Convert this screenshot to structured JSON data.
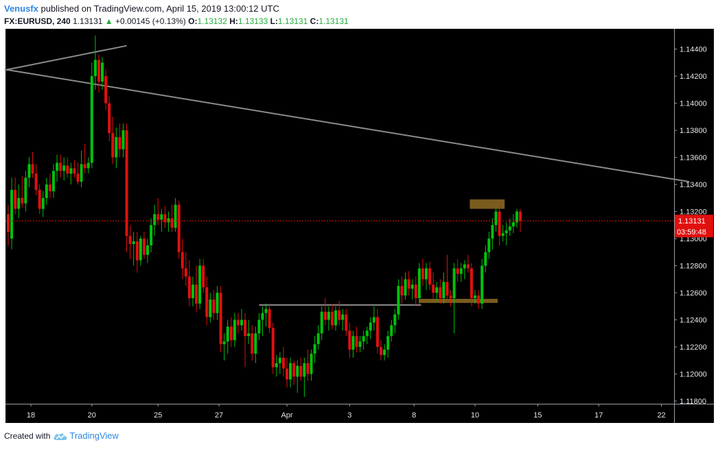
{
  "header": {
    "author": "Venusfx",
    "published_text": "published on TradingView.com, April 15, 2019 13:00:12 UTC",
    "symbol": "FX:EURUSD, 240",
    "last": "1.13131",
    "change_arrow": "▲",
    "change": "+0.00145 (+0.13%)",
    "open_label": "O:",
    "open_value": "1.13132",
    "high_label": "H:",
    "high_value": "1.13133",
    "low_label": "L:",
    "low_value": "1.13131",
    "close_label": "C:",
    "close_value": "1.13131"
  },
  "price_tag": {
    "value": "1.13131",
    "countdown": "03:59:48"
  },
  "footer": {
    "created_with": "Created with",
    "brand": "TradingView",
    "logo_icon": "tradingview-cloud-icon"
  },
  "chart_data": {
    "type": "candlestick",
    "title": "",
    "xlabel": "",
    "ylabel": "",
    "ylim": [
      1.1178,
      1.1455
    ],
    "grid": false,
    "background": "#000000",
    "up_color": "#00c20c",
    "down_color": "#e0100e",
    "price_line": {
      "value": 1.13131,
      "color": "#e0100e"
    },
    "y_ticks": [
      "1.14400",
      "1.14200",
      "1.14000",
      "1.13800",
      "1.13600",
      "1.13400",
      "1.13200",
      "1.13000",
      "1.12800",
      "1.12600",
      "1.12400",
      "1.12200",
      "1.12000",
      "1.11800"
    ],
    "x_ticks": [
      {
        "label": "18",
        "index": 6.5
      },
      {
        "label": "20",
        "index": 24
      },
      {
        "label": "25",
        "index": 43
      },
      {
        "label": "27",
        "index": 60.5
      },
      {
        "label": "Apr",
        "index": 80
      },
      {
        "label": "3",
        "index": 98
      },
      {
        "label": "8",
        "index": 116.5
      },
      {
        "label": "10",
        "index": 134
      },
      {
        "label": "15",
        "index": 152
      },
      {
        "label": "17",
        "index": 169.5
      },
      {
        "label": "22",
        "index": 187.5
      }
    ],
    "candles": [
      {
        "o": 1.1318,
        "h": 1.1325,
        "l": 1.1295,
        "c": 1.1305
      },
      {
        "o": 1.13,
        "h": 1.1345,
        "l": 1.1292,
        "c": 1.1336
      },
      {
        "o": 1.1336,
        "h": 1.1345,
        "l": 1.1318,
        "c": 1.1322
      },
      {
        "o": 1.1322,
        "h": 1.134,
        "l": 1.1315,
        "c": 1.133
      },
      {
        "o": 1.133,
        "h": 1.1346,
        "l": 1.1323,
        "c": 1.1326
      },
      {
        "o": 1.1326,
        "h": 1.135,
        "l": 1.132,
        "c": 1.1345
      },
      {
        "o": 1.1345,
        "h": 1.136,
        "l": 1.1338,
        "c": 1.1355
      },
      {
        "o": 1.1355,
        "h": 1.1364,
        "l": 1.1345,
        "c": 1.1348
      },
      {
        "o": 1.1348,
        "h": 1.1355,
        "l": 1.1332,
        "c": 1.1336
      },
      {
        "o": 1.1336,
        "h": 1.134,
        "l": 1.1318,
        "c": 1.1322
      },
      {
        "o": 1.1322,
        "h": 1.1335,
        "l": 1.1316,
        "c": 1.133
      },
      {
        "o": 1.133,
        "h": 1.1345,
        "l": 1.1325,
        "c": 1.134
      },
      {
        "o": 1.134,
        "h": 1.1348,
        "l": 1.133,
        "c": 1.1335
      },
      {
        "o": 1.1335,
        "h": 1.1355,
        "l": 1.133,
        "c": 1.135
      },
      {
        "o": 1.135,
        "h": 1.1362,
        "l": 1.1342,
        "c": 1.1356
      },
      {
        "o": 1.1356,
        "h": 1.1362,
        "l": 1.1345,
        "c": 1.135
      },
      {
        "o": 1.135,
        "h": 1.136,
        "l": 1.1343,
        "c": 1.1354
      },
      {
        "o": 1.1354,
        "h": 1.136,
        "l": 1.1345,
        "c": 1.1348
      },
      {
        "o": 1.1348,
        "h": 1.1356,
        "l": 1.134,
        "c": 1.1352
      },
      {
        "o": 1.1352,
        "h": 1.1358,
        "l": 1.1345,
        "c": 1.1348
      },
      {
        "o": 1.1348,
        "h": 1.1356,
        "l": 1.134,
        "c": 1.1342
      },
      {
        "o": 1.1342,
        "h": 1.1365,
        "l": 1.1338,
        "c": 1.1355
      },
      {
        "o": 1.1355,
        "h": 1.137,
        "l": 1.1348,
        "c": 1.1352
      },
      {
        "o": 1.1352,
        "h": 1.136,
        "l": 1.1348,
        "c": 1.1356
      },
      {
        "o": 1.1356,
        "h": 1.143,
        "l": 1.1352,
        "c": 1.142
      },
      {
        "o": 1.142,
        "h": 1.145,
        "l": 1.141,
        "c": 1.1432
      },
      {
        "o": 1.1432,
        "h": 1.1436,
        "l": 1.1408,
        "c": 1.1416
      },
      {
        "o": 1.1416,
        "h": 1.1434,
        "l": 1.141,
        "c": 1.143
      },
      {
        "o": 1.142,
        "h": 1.1425,
        "l": 1.1395,
        "c": 1.14
      },
      {
        "o": 1.14,
        "h": 1.1405,
        "l": 1.1372,
        "c": 1.1378
      },
      {
        "o": 1.1378,
        "h": 1.139,
        "l": 1.1355,
        "c": 1.136
      },
      {
        "o": 1.136,
        "h": 1.1382,
        "l": 1.1352,
        "c": 1.1375
      },
      {
        "o": 1.1375,
        "h": 1.1385,
        "l": 1.136,
        "c": 1.1366
      },
      {
        "o": 1.1366,
        "h": 1.1385,
        "l": 1.136,
        "c": 1.138
      },
      {
        "o": 1.138,
        "h": 1.1385,
        "l": 1.129,
        "c": 1.1302
      },
      {
        "o": 1.1302,
        "h": 1.131,
        "l": 1.1285,
        "c": 1.1296
      },
      {
        "o": 1.1296,
        "h": 1.1305,
        "l": 1.128,
        "c": 1.1298
      },
      {
        "o": 1.1298,
        "h": 1.1305,
        "l": 1.1275,
        "c": 1.1284
      },
      {
        "o": 1.1284,
        "h": 1.1302,
        "l": 1.128,
        "c": 1.13
      },
      {
        "o": 1.13,
        "h": 1.1305,
        "l": 1.1285,
        "c": 1.1288
      },
      {
        "o": 1.1288,
        "h": 1.13,
        "l": 1.1282,
        "c": 1.1295
      },
      {
        "o": 1.1295,
        "h": 1.1315,
        "l": 1.129,
        "c": 1.131
      },
      {
        "o": 1.131,
        "h": 1.1325,
        "l": 1.1302,
        "c": 1.1318
      },
      {
        "o": 1.1318,
        "h": 1.133,
        "l": 1.131,
        "c": 1.1314
      },
      {
        "o": 1.1314,
        "h": 1.1322,
        "l": 1.1305,
        "c": 1.1318
      },
      {
        "o": 1.1318,
        "h": 1.1324,
        "l": 1.1308,
        "c": 1.1312
      },
      {
        "o": 1.1312,
        "h": 1.132,
        "l": 1.1305,
        "c": 1.1315
      },
      {
        "o": 1.1315,
        "h": 1.1325,
        "l": 1.1305,
        "c": 1.1308
      },
      {
        "o": 1.1308,
        "h": 1.133,
        "l": 1.1305,
        "c": 1.1325
      },
      {
        "o": 1.1325,
        "h": 1.1328,
        "l": 1.1285,
        "c": 1.129
      },
      {
        "o": 1.129,
        "h": 1.13,
        "l": 1.127,
        "c": 1.1278
      },
      {
        "o": 1.1278,
        "h": 1.129,
        "l": 1.1265,
        "c": 1.1272
      },
      {
        "o": 1.1272,
        "h": 1.1284,
        "l": 1.125,
        "c": 1.1256
      },
      {
        "o": 1.1256,
        "h": 1.1272,
        "l": 1.125,
        "c": 1.1266
      },
      {
        "o": 1.1266,
        "h": 1.128,
        "l": 1.1246,
        "c": 1.1252
      },
      {
        "o": 1.1252,
        "h": 1.1285,
        "l": 1.1248,
        "c": 1.128
      },
      {
        "o": 1.128,
        "h": 1.1285,
        "l": 1.126,
        "c": 1.1264
      },
      {
        "o": 1.1264,
        "h": 1.1272,
        "l": 1.1236,
        "c": 1.1242
      },
      {
        "o": 1.1242,
        "h": 1.126,
        "l": 1.1238,
        "c": 1.1255
      },
      {
        "o": 1.1255,
        "h": 1.1262,
        "l": 1.124,
        "c": 1.1245
      },
      {
        "o": 1.1245,
        "h": 1.1265,
        "l": 1.124,
        "c": 1.126
      },
      {
        "o": 1.126,
        "h": 1.1265,
        "l": 1.1216,
        "c": 1.1222
      },
      {
        "o": 1.1222,
        "h": 1.123,
        "l": 1.121,
        "c": 1.1224
      },
      {
        "o": 1.1224,
        "h": 1.124,
        "l": 1.1215,
        "c": 1.1235
      },
      {
        "o": 1.1235,
        "h": 1.1242,
        "l": 1.122,
        "c": 1.1225
      },
      {
        "o": 1.1225,
        "h": 1.1245,
        "l": 1.122,
        "c": 1.124
      },
      {
        "o": 1.124,
        "h": 1.1245,
        "l": 1.123,
        "c": 1.1236
      },
      {
        "o": 1.1236,
        "h": 1.1248,
        "l": 1.1232,
        "c": 1.124
      },
      {
        "o": 1.124,
        "h": 1.1245,
        "l": 1.1205,
        "c": 1.1228
      },
      {
        "o": 1.1228,
        "h": 1.124,
        "l": 1.1222,
        "c": 1.123
      },
      {
        "o": 1.123,
        "h": 1.1236,
        "l": 1.121,
        "c": 1.1215
      },
      {
        "o": 1.1215,
        "h": 1.1235,
        "l": 1.1208,
        "c": 1.123
      },
      {
        "o": 1.123,
        "h": 1.1245,
        "l": 1.1225,
        "c": 1.124
      },
      {
        "o": 1.124,
        "h": 1.125,
        "l": 1.1228,
        "c": 1.1245
      },
      {
        "o": 1.1245,
        "h": 1.1252,
        "l": 1.1235,
        "c": 1.1248
      },
      {
        "o": 1.1248,
        "h": 1.1252,
        "l": 1.123,
        "c": 1.1234
      },
      {
        "o": 1.1234,
        "h": 1.1238,
        "l": 1.12,
        "c": 1.1205
      },
      {
        "o": 1.1205,
        "h": 1.1214,
        "l": 1.1198,
        "c": 1.1208
      },
      {
        "o": 1.1208,
        "h": 1.1216,
        "l": 1.12,
        "c": 1.1212
      },
      {
        "o": 1.1212,
        "h": 1.122,
        "l": 1.1198,
        "c": 1.1204
      },
      {
        "o": 1.1204,
        "h": 1.1212,
        "l": 1.119,
        "c": 1.1196
      },
      {
        "o": 1.1196,
        "h": 1.1212,
        "l": 1.119,
        "c": 1.1208
      },
      {
        "o": 1.1208,
        "h": 1.121,
        "l": 1.1192,
        "c": 1.1198
      },
      {
        "o": 1.1198,
        "h": 1.121,
        "l": 1.1186,
        "c": 1.1206
      },
      {
        "o": 1.1206,
        "h": 1.1212,
        "l": 1.1195,
        "c": 1.1198
      },
      {
        "o": 1.1198,
        "h": 1.1212,
        "l": 1.1183,
        "c": 1.1208
      },
      {
        "o": 1.1208,
        "h": 1.1218,
        "l": 1.1195,
        "c": 1.12
      },
      {
        "o": 1.12,
        "h": 1.1218,
        "l": 1.1195,
        "c": 1.1215
      },
      {
        "o": 1.1215,
        "h": 1.1228,
        "l": 1.1208,
        "c": 1.1222
      },
      {
        "o": 1.1222,
        "h": 1.1236,
        "l": 1.1218,
        "c": 1.123
      },
      {
        "o": 1.123,
        "h": 1.125,
        "l": 1.1225,
        "c": 1.1246
      },
      {
        "o": 1.1246,
        "h": 1.1256,
        "l": 1.1236,
        "c": 1.124
      },
      {
        "o": 1.124,
        "h": 1.125,
        "l": 1.1232,
        "c": 1.1246
      },
      {
        "o": 1.1246,
        "h": 1.1252,
        "l": 1.1233,
        "c": 1.1236
      },
      {
        "o": 1.1236,
        "h": 1.125,
        "l": 1.1232,
        "c": 1.1247
      },
      {
        "o": 1.1247,
        "h": 1.1254,
        "l": 1.1236,
        "c": 1.124
      },
      {
        "o": 1.124,
        "h": 1.1248,
        "l": 1.1232,
        "c": 1.1244
      },
      {
        "o": 1.1244,
        "h": 1.1248,
        "l": 1.1228,
        "c": 1.1232
      },
      {
        "o": 1.1232,
        "h": 1.1238,
        "l": 1.1212,
        "c": 1.1218
      },
      {
        "o": 1.1218,
        "h": 1.1232,
        "l": 1.1212,
        "c": 1.1228
      },
      {
        "o": 1.1228,
        "h": 1.1235,
        "l": 1.1216,
        "c": 1.122
      },
      {
        "o": 1.122,
        "h": 1.1228,
        "l": 1.1216,
        "c": 1.1224
      },
      {
        "o": 1.1224,
        "h": 1.1232,
        "l": 1.1218,
        "c": 1.1228
      },
      {
        "o": 1.1228,
        "h": 1.1235,
        "l": 1.1222,
        "c": 1.1232
      },
      {
        "o": 1.1232,
        "h": 1.1242,
        "l": 1.1226,
        "c": 1.1238
      },
      {
        "o": 1.1238,
        "h": 1.125,
        "l": 1.1232,
        "c": 1.1242
      },
      {
        "o": 1.1242,
        "h": 1.1248,
        "l": 1.1215,
        "c": 1.122
      },
      {
        "o": 1.122,
        "h": 1.1225,
        "l": 1.121,
        "c": 1.1214
      },
      {
        "o": 1.1214,
        "h": 1.1222,
        "l": 1.121,
        "c": 1.1218
      },
      {
        "o": 1.1218,
        "h": 1.1232,
        "l": 1.1212,
        "c": 1.1228
      },
      {
        "o": 1.1228,
        "h": 1.124,
        "l": 1.1224,
        "c": 1.1236
      },
      {
        "o": 1.1236,
        "h": 1.1248,
        "l": 1.123,
        "c": 1.1244
      },
      {
        "o": 1.1244,
        "h": 1.127,
        "l": 1.124,
        "c": 1.1265
      },
      {
        "o": 1.1265,
        "h": 1.1272,
        "l": 1.1252,
        "c": 1.1258
      },
      {
        "o": 1.1258,
        "h": 1.1275,
        "l": 1.1255,
        "c": 1.127
      },
      {
        "o": 1.127,
        "h": 1.1276,
        "l": 1.1258,
        "c": 1.1263
      },
      {
        "o": 1.1263,
        "h": 1.127,
        "l": 1.1255,
        "c": 1.1266
      },
      {
        "o": 1.1266,
        "h": 1.1272,
        "l": 1.125,
        "c": 1.1256
      },
      {
        "o": 1.1256,
        "h": 1.1282,
        "l": 1.1252,
        "c": 1.1278
      },
      {
        "o": 1.1278,
        "h": 1.1285,
        "l": 1.1265,
        "c": 1.127
      },
      {
        "o": 1.127,
        "h": 1.1282,
        "l": 1.1262,
        "c": 1.1278
      },
      {
        "o": 1.1278,
        "h": 1.1283,
        "l": 1.1262,
        "c": 1.1266
      },
      {
        "o": 1.1266,
        "h": 1.1275,
        "l": 1.1255,
        "c": 1.126
      },
      {
        "o": 1.126,
        "h": 1.1268,
        "l": 1.1254,
        "c": 1.1264
      },
      {
        "o": 1.1264,
        "h": 1.127,
        "l": 1.1252,
        "c": 1.1256
      },
      {
        "o": 1.1256,
        "h": 1.1275,
        "l": 1.1252,
        "c": 1.1268
      },
      {
        "o": 1.1268,
        "h": 1.1288,
        "l": 1.1254,
        "c": 1.1258
      },
      {
        "o": 1.1258,
        "h": 1.1262,
        "l": 1.125,
        "c": 1.1256
      },
      {
        "o": 1.1256,
        "h": 1.1282,
        "l": 1.123,
        "c": 1.1278
      },
      {
        "o": 1.1278,
        "h": 1.1285,
        "l": 1.1268,
        "c": 1.1274
      },
      {
        "o": 1.1274,
        "h": 1.1282,
        "l": 1.1268,
        "c": 1.1278
      },
      {
        "o": 1.1278,
        "h": 1.1284,
        "l": 1.127,
        "c": 1.1281
      },
      {
        "o": 1.1281,
        "h": 1.1288,
        "l": 1.1275,
        "c": 1.1278
      },
      {
        "o": 1.1278,
        "h": 1.1282,
        "l": 1.125,
        "c": 1.1256
      },
      {
        "o": 1.1256,
        "h": 1.1262,
        "l": 1.1252,
        "c": 1.1258
      },
      {
        "o": 1.1258,
        "h": 1.1262,
        "l": 1.1248,
        "c": 1.1252
      },
      {
        "o": 1.1252,
        "h": 1.1285,
        "l": 1.1248,
        "c": 1.128
      },
      {
        "o": 1.128,
        "h": 1.1295,
        "l": 1.1275,
        "c": 1.129
      },
      {
        "o": 1.129,
        "h": 1.1305,
        "l": 1.1285,
        "c": 1.13
      },
      {
        "o": 1.13,
        "h": 1.1315,
        "l": 1.1292,
        "c": 1.131
      },
      {
        "o": 1.131,
        "h": 1.1322,
        "l": 1.1305,
        "c": 1.132
      },
      {
        "o": 1.132,
        "h": 1.1324,
        "l": 1.1295,
        "c": 1.1302
      },
      {
        "o": 1.1302,
        "h": 1.131,
        "l": 1.1298,
        "c": 1.1304
      },
      {
        "o": 1.1304,
        "h": 1.1312,
        "l": 1.1295,
        "c": 1.1306
      },
      {
        "o": 1.1306,
        "h": 1.1315,
        "l": 1.1302,
        "c": 1.1309
      },
      {
        "o": 1.1309,
        "h": 1.1318,
        "l": 1.1304,
        "c": 1.1312
      },
      {
        "o": 1.1312,
        "h": 1.1322,
        "l": 1.1308,
        "c": 1.132
      },
      {
        "o": 1.132,
        "h": 1.1322,
        "l": 1.1305,
        "c": 1.1313
      }
    ],
    "drawings": [
      {
        "name": "upper-trendline",
        "color": "#8c8c8c",
        "from": {
          "i": -1,
          "p": 1.14245
        },
        "to": {
          "i": 34,
          "p": 1.14425
        }
      },
      {
        "name": "descending-trendline",
        "color": "#8c8c8c",
        "from": {
          "i": -1,
          "p": 1.1425
        },
        "to": {
          "i": 195.5,
          "p": 1.1342
        }
      },
      {
        "name": "support-line",
        "color": "#8c8c8c",
        "from": {
          "i": 72,
          "p": 1.1251
        },
        "to": {
          "i": 118.5,
          "p": 1.1251
        }
      },
      {
        "name": "orange-zone-upper",
        "color": "#7a5c1e",
        "from": {
          "i": 132.5,
          "p": 1.1329
        },
        "to": {
          "i": 142.5,
          "p": 1.1322
        }
      },
      {
        "name": "orange-zone-lower",
        "color": "#7a5c1e",
        "from": {
          "i": 118,
          "p": 1.12555
        },
        "to": {
          "i": 140.5,
          "p": 1.12525
        }
      }
    ]
  }
}
